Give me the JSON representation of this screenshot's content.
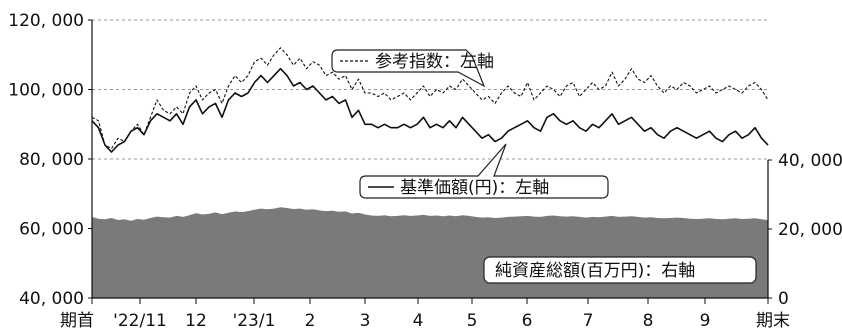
{
  "chart_data": {
    "type": "line",
    "title": "",
    "xlabel": "",
    "ylabel_left": "",
    "ylabel_right": "",
    "left_axis": {
      "min": 40000,
      "max": 120000,
      "ticks": [
        40000,
        60000,
        80000,
        100000,
        120000
      ],
      "tick_labels": [
        "40, 000",
        "60, 000",
        "80, 000",
        "100, 000",
        "120, 000"
      ]
    },
    "right_axis": {
      "min": 0,
      "max": 40000,
      "ticks": [
        0,
        20000,
        40000
      ],
      "tick_labels": [
        "0",
        "20, 000",
        "40, 000"
      ]
    },
    "x_ticks": [
      "期首",
      "'22/11",
      "12",
      "'23/1",
      "2",
      "3",
      "4",
      "5",
      "6",
      "7",
      "8",
      "9",
      "期末"
    ],
    "gridlines": "dashed-horizontal",
    "series": [
      {
        "name": "参考指数：左軸",
        "axis": "left",
        "style": "dashed",
        "color": "#111111",
        "values": [
          92000,
          91000,
          84000,
          83000,
          86000,
          85000,
          88000,
          90000,
          87000,
          92000,
          97000,
          94000,
          93000,
          95000,
          93000,
          99000,
          101000,
          97000,
          99000,
          100000,
          96000,
          101000,
          104000,
          102000,
          104000,
          108000,
          109000,
          107000,
          110000,
          112000,
          110000,
          107000,
          109000,
          106000,
          108000,
          107000,
          104000,
          105000,
          103000,
          104000,
          100000,
          103000,
          99000,
          99000,
          98000,
          99000,
          97000,
          98000,
          99000,
          97000,
          99000,
          101000,
          98000,
          100000,
          99000,
          101000,
          100000,
          103000,
          101000,
          99000,
          97000,
          98000,
          96000,
          99000,
          101000,
          99000,
          98000,
          102000,
          97000,
          99000,
          101000,
          100000,
          98000,
          101000,
          102000,
          98000,
          100000,
          102000,
          100000,
          101000,
          105000,
          101000,
          103000,
          106000,
          103000,
          102000,
          104000,
          101000,
          99000,
          101000,
          100000,
          102000,
          101000,
          99000,
          100000,
          101000,
          99000,
          100000,
          101000,
          100000,
          99000,
          101000,
          102000,
          100000,
          97000
        ]
      },
      {
        "name": "基準価額(円)：左軸",
        "axis": "left",
        "style": "solid",
        "color": "#111111",
        "values": [
          91000,
          89000,
          84000,
          82000,
          84000,
          85000,
          88000,
          89000,
          87000,
          91000,
          93000,
          92000,
          91000,
          93000,
          90000,
          95000,
          97000,
          93000,
          95000,
          96000,
          92000,
          97000,
          99000,
          98000,
          99000,
          102000,
          104000,
          102000,
          104000,
          106000,
          104000,
          101000,
          102000,
          100000,
          101000,
          99000,
          97000,
          98000,
          96000,
          97000,
          92000,
          94000,
          90000,
          90000,
          89000,
          90000,
          89000,
          89000,
          90000,
          89000,
          90000,
          92000,
          89000,
          90000,
          89000,
          91000,
          89000,
          92000,
          90000,
          88000,
          86000,
          87000,
          85000,
          86000,
          88000,
          89000,
          90000,
          91000,
          89000,
          88000,
          92000,
          93000,
          91000,
          90000,
          91000,
          89000,
          88000,
          90000,
          89000,
          91000,
          93000,
          90000,
          91000,
          92000,
          90000,
          88000,
          89000,
          87000,
          86000,
          88000,
          89000,
          88000,
          87000,
          86000,
          87000,
          88000,
          86000,
          85000,
          87000,
          88000,
          86000,
          87000,
          89000,
          86000,
          84000
        ]
      },
      {
        "name": "純資産総額(百万円)：右軸",
        "axis": "right",
        "style": "area",
        "color": "#7a7a7a",
        "values": [
          23500,
          23000,
          22800,
          23200,
          22600,
          22800,
          22400,
          22900,
          22700,
          23200,
          23600,
          23400,
          23300,
          23800,
          23500,
          24000,
          24600,
          24200,
          24400,
          24800,
          24300,
          24700,
          25100,
          24900,
          25200,
          25600,
          25900,
          25700,
          25900,
          26300,
          26100,
          25800,
          25900,
          25600,
          25700,
          25400,
          25200,
          25300,
          25000,
          25100,
          24500,
          24700,
          24200,
          23900,
          23800,
          24000,
          23700,
          23800,
          24000,
          23800,
          23900,
          24100,
          23800,
          23900,
          23700,
          23900,
          23700,
          24000,
          23800,
          23500,
          23300,
          23400,
          23200,
          23300,
          23500,
          23600,
          23700,
          23800,
          23600,
          23500,
          23800,
          23900,
          23700,
          23600,
          23700,
          23500,
          23300,
          23500,
          23400,
          23600,
          23800,
          23500,
          23600,
          23700,
          23500,
          23300,
          23400,
          23200,
          23100,
          23200,
          23300,
          23200,
          23000,
          22900,
          23000,
          23100,
          22900,
          22800,
          23000,
          23100,
          22900,
          23000,
          23100,
          22800,
          22600
        ]
      }
    ],
    "callouts": [
      {
        "label": "参考指数：左軸",
        "series": 0
      },
      {
        "label": "基準価額(円)：左軸",
        "series": 1
      },
      {
        "label": "純資産総額(百万円)：右軸",
        "series": 2
      }
    ]
  }
}
